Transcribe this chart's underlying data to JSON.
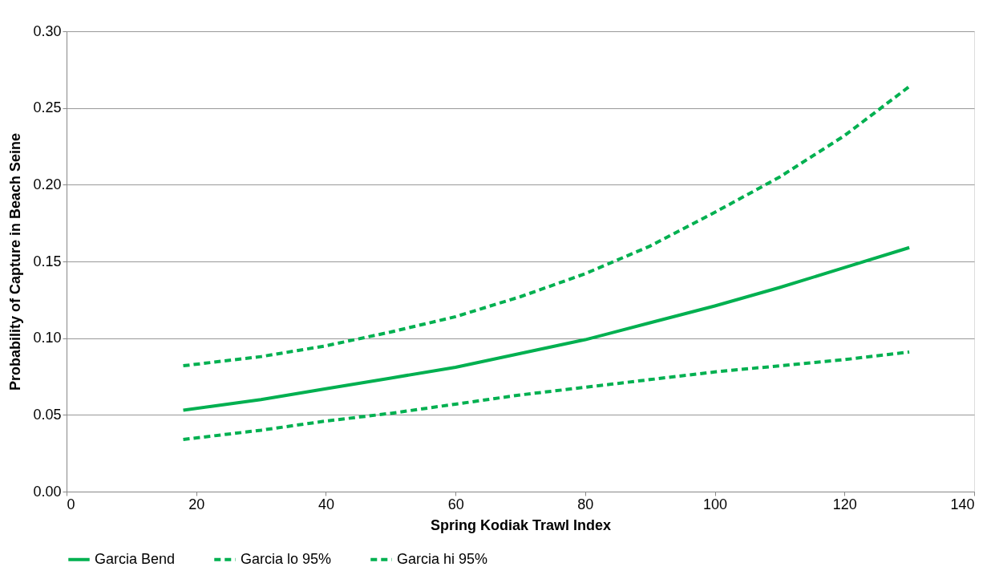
{
  "chart_data": {
    "type": "line",
    "xlabel": "Spring Kodiak Trawl Index",
    "ylabel": "Probability of Capture in Beach Seine",
    "x": [
      18,
      30,
      40,
      50,
      60,
      70,
      80,
      90,
      100,
      110,
      120,
      130
    ],
    "series": [
      {
        "name": "Garcia Bend",
        "color": "#00b050",
        "line_style": "solid",
        "values": [
          0.053,
          0.06,
          0.067,
          0.074,
          0.081,
          0.09,
          0.099,
          0.11,
          0.121,
          0.133,
          0.146,
          0.159
        ]
      },
      {
        "name": "Garcia lo 95%",
        "color": "#00b050",
        "line_style": "dashed",
        "values": [
          0.034,
          0.04,
          0.046,
          0.051,
          0.057,
          0.063,
          0.068,
          0.073,
          0.078,
          0.082,
          0.086,
          0.091
        ]
      },
      {
        "name": "Garcia hi 95%",
        "color": "#00b050",
        "line_style": "dashed",
        "values": [
          0.082,
          0.088,
          0.095,
          0.104,
          0.114,
          0.127,
          0.142,
          0.16,
          0.182,
          0.205,
          0.232,
          0.264
        ]
      }
    ],
    "xlim": [
      0,
      140
    ],
    "xticks": [
      0,
      20,
      40,
      60,
      80,
      100,
      120,
      140
    ],
    "ylim": [
      0,
      0.3
    ],
    "yticks": [
      {
        "value": 0,
        "label": "0.00"
      },
      {
        "value": 0.05,
        "label": "0.05"
      },
      {
        "value": 0.1,
        "label": "0.10"
      },
      {
        "value": 0.15,
        "label": "0.15"
      },
      {
        "value": 0.2,
        "label": "0.20"
      },
      {
        "value": 0.25,
        "label": "0.25"
      },
      {
        "value": 0.3,
        "label": "0.30"
      }
    ],
    "grid": "y",
    "legend": "bottom",
    "marker": "none"
  }
}
